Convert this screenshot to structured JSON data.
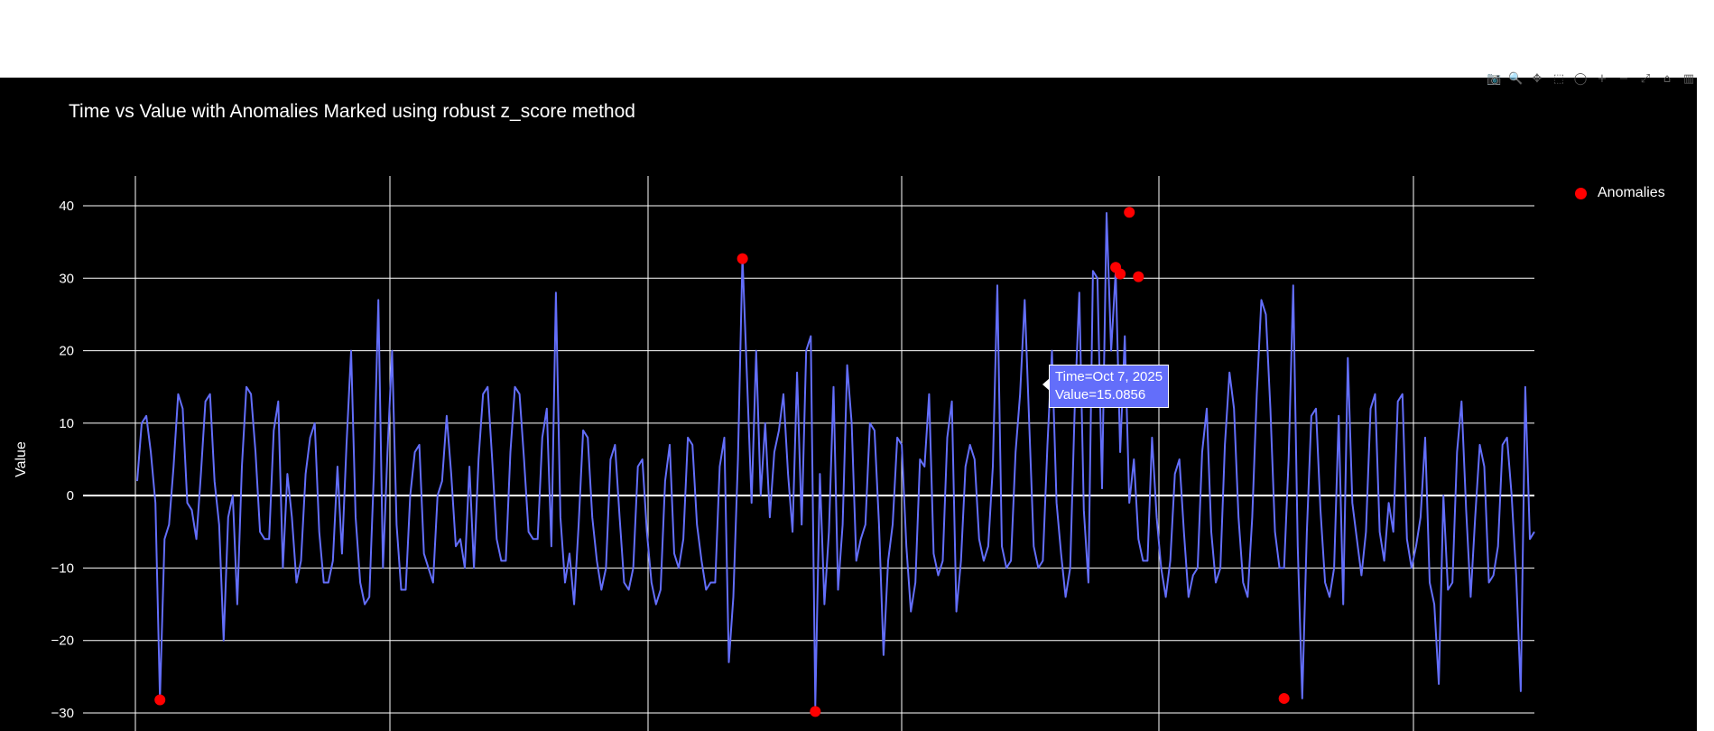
{
  "chart_data": {
    "type": "line",
    "title": "Time vs Value with Anomalies Marked using robust z_score method",
    "xlabel": "",
    "ylabel": "Value",
    "ylim": [
      -32.5,
      44
    ],
    "yticks": [
      40,
      30,
      20,
      10,
      0,
      -10,
      -20,
      -30
    ],
    "ytick_labels": [
      "40",
      "30",
      "20",
      "10",
      "0",
      "−10",
      "−20",
      "−30"
    ],
    "grid": true,
    "legend_position": "top-right",
    "colors": {
      "line": "#636efa",
      "anomaly": "#ff0000",
      "background": "#000000",
      "grid": "#ffffff",
      "text": "#ffffff"
    },
    "series": [
      {
        "name": "",
        "values": [
          2,
          10,
          11,
          6,
          -1,
          -28,
          -6,
          -4,
          4,
          14,
          12,
          -1,
          -2,
          -6,
          3,
          13,
          14,
          2,
          -4,
          -20,
          -3,
          0,
          -15,
          4,
          15,
          14,
          6,
          -5,
          -6,
          -6,
          9,
          13,
          -10,
          3,
          -3,
          -12,
          -9,
          3,
          8,
          10,
          -5,
          -12,
          -12,
          -9,
          4,
          -8,
          7,
          20,
          -3,
          -12,
          -15,
          -14,
          3,
          27,
          -10,
          6,
          20,
          -4,
          -13,
          -13,
          0,
          6,
          7,
          -8,
          -10,
          -12,
          0,
          2,
          11,
          3,
          -7,
          -6,
          -10,
          4,
          -10,
          5,
          14,
          15,
          5,
          -6,
          -9,
          -9,
          6,
          15,
          14,
          5,
          -5,
          -6,
          -6,
          8,
          12,
          -7,
          28,
          -3,
          -12,
          -8,
          -15,
          -4,
          9,
          8,
          -3,
          -9,
          -13,
          -10,
          5,
          7,
          -3,
          -12,
          -13,
          -10,
          4,
          5,
          -5,
          -12,
          -15,
          -13,
          2,
          7,
          -8,
          -10,
          -6,
          8,
          7,
          -4,
          -9,
          -13,
          -12,
          -12,
          4,
          8,
          -23,
          -14,
          5,
          33,
          16,
          -1,
          20,
          0,
          10,
          -3,
          6,
          9,
          14,
          3,
          -5,
          17,
          -4,
          20,
          22,
          -29,
          3,
          -15,
          -5,
          15,
          -13,
          -4,
          18,
          10,
          -9,
          -6,
          -4,
          10,
          9,
          -4,
          -22,
          -9,
          -4,
          8,
          7,
          -7,
          -16,
          -12,
          5,
          4,
          14,
          -8,
          -11,
          -9,
          8,
          13,
          -16,
          -9,
          4,
          7,
          5,
          -6,
          -9,
          -7,
          4,
          29,
          -7,
          -10,
          -9,
          6,
          14,
          27,
          10,
          -7,
          -10,
          -9,
          7,
          20,
          -1,
          -8,
          -14,
          -10,
          12,
          28,
          -2,
          -12,
          31,
          30,
          1,
          39,
          20,
          31,
          6,
          22,
          -1,
          5,
          -6,
          -9,
          -9,
          8,
          -3,
          -10,
          -14,
          -9,
          3,
          5,
          -5,
          -14,
          -11,
          -10,
          6,
          12,
          -5,
          -12,
          -10,
          7,
          17,
          12,
          -3,
          -12,
          -14,
          -3,
          14,
          27,
          25,
          12,
          -5,
          -10,
          -10,
          5,
          29,
          -7,
          -28,
          -5,
          11,
          12,
          -2,
          -12,
          -14,
          -10,
          11,
          -15,
          19,
          -1,
          -6,
          -11,
          -5,
          12,
          14,
          -5,
          -9,
          -1,
          -5,
          13,
          14,
          -6,
          -10,
          -7,
          -3,
          8,
          -12,
          -15,
          -26,
          0,
          -13,
          -12,
          6,
          13,
          -2,
          -14,
          -3,
          7,
          4,
          -12,
          -11,
          -7,
          7,
          8,
          0,
          -11,
          -27,
          15,
          -6,
          -5
        ]
      },
      {
        "name": "Anomalies",
        "points": [
          {
            "x_index": 5,
            "value": -28.2
          },
          {
            "x_index": 133,
            "value": 32.7
          },
          {
            "x_index": 149,
            "value": -29.8
          },
          {
            "x_index": 215,
            "value": 31.5
          },
          {
            "x_index": 216,
            "value": 30.6
          },
          {
            "x_index": 218,
            "value": 39.1
          },
          {
            "x_index": 220,
            "value": 30.2
          },
          {
            "x_index": 252,
            "value": -28.0
          }
        ]
      }
    ],
    "hover": {
      "time": "Time=Oct 7, 2025",
      "value": "Value=15.0856"
    }
  },
  "legend": {
    "label": "Anomalies"
  },
  "modebar": {
    "icons": [
      "camera-icon",
      "zoom-icon",
      "pan-icon",
      "box-select-icon",
      "lasso-icon",
      "zoom-in-icon",
      "zoom-out-icon",
      "autoscale-icon",
      "home-icon",
      "plotly-logo-icon"
    ],
    "glyphs": [
      "📷",
      "🔍",
      "✥",
      "⬚",
      "◯",
      "+",
      "−",
      "⤢",
      "⌂",
      "▥"
    ]
  }
}
